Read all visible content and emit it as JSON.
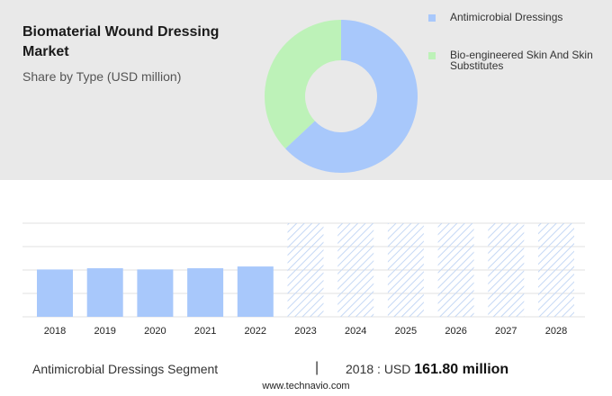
{
  "header": {
    "title": "Biomaterial Wound Dressing Market",
    "subtitle": "Share by Type (USD million)"
  },
  "colors": {
    "antimicrobial": "#a8c8fb",
    "bioengineered": "#bdf2b8",
    "bar": "#a8c8fb",
    "forecast_hatch": "#c5d8f5"
  },
  "chart_data": [
    {
      "type": "pie",
      "variant": "donut",
      "title": "Share by Type (USD million)",
      "legend_position": "top-right",
      "series": [
        {
          "name": "Antimicrobial Dressings",
          "share": 0.63
        },
        {
          "name": "Bio-engineered Skin And Skin Substitutes",
          "share": 0.37
        }
      ]
    },
    {
      "type": "bar",
      "categories": [
        "2018",
        "2019",
        "2020",
        "2021",
        "2022",
        "2023",
        "2024",
        "2025",
        "2026",
        "2027",
        "2028"
      ],
      "values": [
        161.8,
        166,
        162,
        166,
        172,
        null,
        null,
        null,
        null,
        null,
        null
      ],
      "forecast_categories": [
        "2023",
        "2024",
        "2025",
        "2026",
        "2027",
        "2028"
      ],
      "grid": true,
      "ylim": [
        0,
        320
      ]
    }
  ],
  "legend": {
    "items": [
      {
        "label": "Antimicrobial Dressings"
      },
      {
        "label": "Bio-engineered Skin And Skin Substitutes"
      }
    ]
  },
  "footer": {
    "segment": "Antimicrobial Dressings Segment",
    "divider": "|",
    "year_prefix": "2018 : USD",
    "value": "161.80 million",
    "website": "www.technavio.com"
  }
}
